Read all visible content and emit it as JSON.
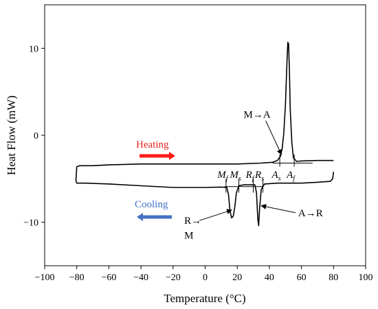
{
  "chart_data": {
    "type": "line",
    "xlabel": "Temperature (°C)",
    "ylabel": "Heat Flow  (mW)",
    "xlim": [
      -100,
      100
    ],
    "ylim": [
      -15,
      15
    ],
    "x_ticks": [
      "−100",
      "−80",
      "−60",
      "−40",
      "−20",
      "0",
      "20",
      "40",
      "60",
      "80",
      "100"
    ],
    "x_tick_values": [
      -100,
      -80,
      -60,
      -40,
      -20,
      0,
      20,
      40,
      60,
      80,
      100
    ],
    "y_ticks": [
      "10",
      "0",
      "−10"
    ],
    "y_tick_values": [
      10,
      0,
      -10
    ],
    "grid": false,
    "series": [
      {
        "points": [
          [
            -80,
            -3.6
          ],
          [
            -78,
            -3.5
          ],
          [
            -70,
            -3.5
          ],
          [
            -60,
            -3.4
          ],
          [
            -40,
            -3.3
          ],
          [
            -20,
            -3.3
          ],
          [
            0,
            -3.3
          ],
          [
            20,
            -3.3
          ],
          [
            35,
            -3.2
          ],
          [
            42,
            -3.1
          ],
          [
            45,
            -2.9
          ],
          [
            47,
            -2.4
          ],
          [
            48,
            -1.5
          ],
          [
            49,
            0.2
          ],
          [
            50,
            3.5
          ],
          [
            51,
            8.5
          ],
          [
            51.5,
            10.7
          ],
          [
            52,
            10.5
          ],
          [
            52.5,
            7.5
          ],
          [
            53,
            3.0
          ],
          [
            54,
            -0.8
          ],
          [
            55,
            -2.6
          ],
          [
            57,
            -3.0
          ],
          [
            60,
            -2.95
          ],
          [
            70,
            -2.9
          ],
          [
            80,
            -2.9
          ]
        ]
      },
      {
        "points": [
          [
            80,
            -4.2
          ],
          [
            79.5,
            -5.0
          ],
          [
            78,
            -5.3
          ],
          [
            70,
            -5.4
          ],
          [
            60,
            -5.5
          ],
          [
            45,
            -5.5
          ],
          [
            37,
            -5.6
          ],
          [
            35,
            -6.2
          ],
          [
            34,
            -8.2
          ],
          [
            33.3,
            -10.4
          ],
          [
            32.8,
            -9.6
          ],
          [
            32,
            -6.6
          ],
          [
            31,
            -5.7
          ],
          [
            28,
            -5.7
          ],
          [
            24,
            -5.7
          ],
          [
            21,
            -5.8
          ],
          [
            19.5,
            -6.6
          ],
          [
            18.5,
            -8.2
          ],
          [
            17.5,
            -9.3
          ],
          [
            16.5,
            -9.5
          ],
          [
            15.5,
            -8.7
          ],
          [
            14.5,
            -6.8
          ],
          [
            13.5,
            -6.0
          ],
          [
            10,
            -5.95
          ],
          [
            0,
            -6.0
          ],
          [
            -20,
            -6.0
          ],
          [
            -40,
            -5.8
          ],
          [
            -60,
            -5.6
          ],
          [
            -75,
            -5.5
          ],
          [
            -80,
            -5.5
          ],
          [
            -80.5,
            -5.2
          ],
          [
            -80,
            -3.6
          ]
        ]
      }
    ],
    "baselines": [
      {
        "from": [
          42,
          -3.2
        ],
        "to": [
          67,
          -3.2
        ]
      },
      {
        "from": [
          12,
          -5.9
        ],
        "to": [
          36,
          -5.9
        ]
      }
    ],
    "vertical_markers": [
      {
        "x": 46.5,
        "label": "A",
        "sub": "s"
      },
      {
        "x": 55.5,
        "label": "A",
        "sub": "f"
      },
      {
        "x": 13,
        "label": "M",
        "sub": "f"
      },
      {
        "x": 21,
        "label": "M",
        "sub": "s"
      },
      {
        "x": 30,
        "label": "R",
        "sub": "f"
      },
      {
        "x": 36,
        "label": "R",
        "sub": "s"
      }
    ],
    "annotations": [
      {
        "text": "M→A",
        "x": 24,
        "y": 2.0,
        "arrow_to": [
          47.5,
          -2.2
        ]
      },
      {
        "text": "A→R",
        "x": 58,
        "y": -9.3,
        "arrow_to": [
          35,
          -8.1
        ]
      },
      {
        "text": "R→",
        "x": -13,
        "y": -10.2,
        "arrow_to": [
          16.5,
          -8.6
        ]
      },
      {
        "text": "M",
        "x": -13,
        "y": -11.9
      }
    ],
    "legend": [
      {
        "text": "Heating",
        "color": "#e8231b",
        "arrow_color": "#ff1a1a",
        "direction": "right"
      },
      {
        "text": "Cooling",
        "color": "#3f6fc8",
        "arrow_color": "#4472c4",
        "direction": "left"
      }
    ]
  }
}
